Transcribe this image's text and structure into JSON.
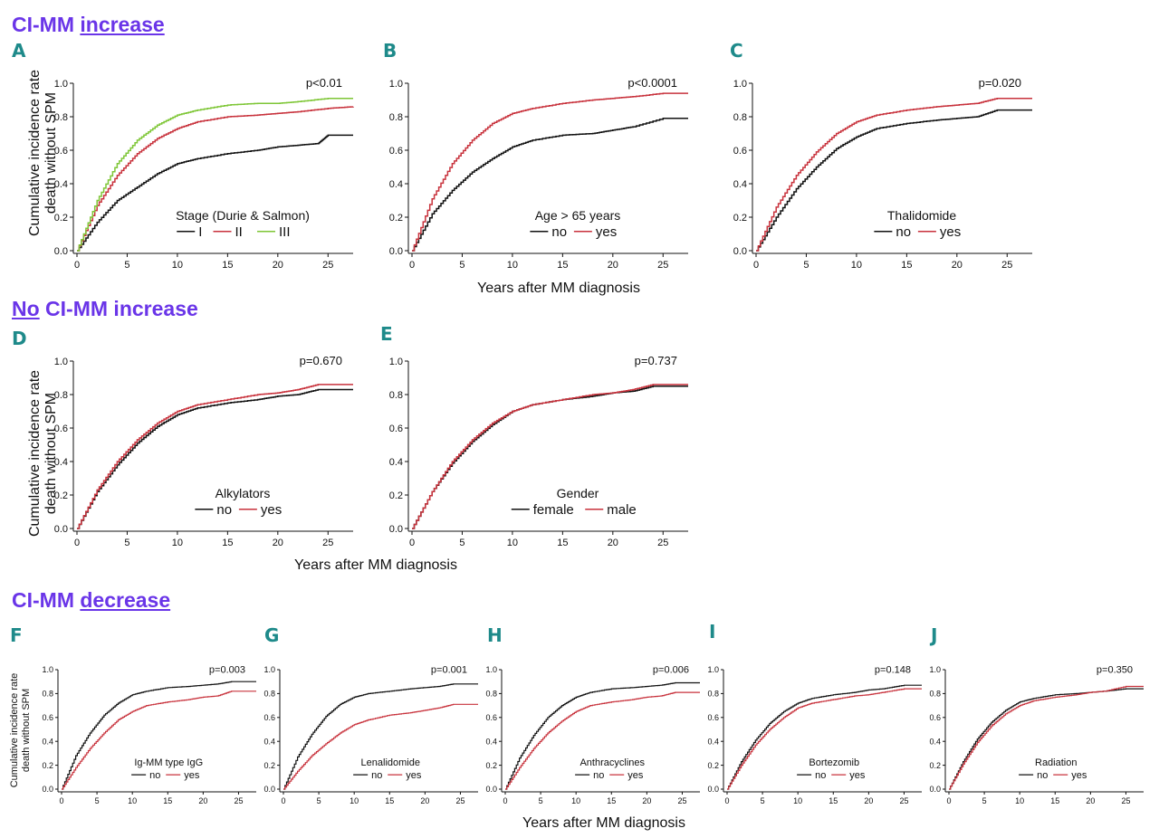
{
  "sections": {
    "increase": {
      "prefix": "CI-MM ",
      "underlined": "increase",
      "suffix": ""
    },
    "no_increase": {
      "prefix": "",
      "underlined": "No",
      "suffix": " CI-MM increase"
    },
    "decrease": {
      "prefix": "CI-MM ",
      "underlined": "decrease",
      "suffix": ""
    }
  },
  "axis_titles": {
    "y_line1": "Cumulative incidence rate",
    "y_line2": "death without SPM",
    "x": "Years after MM diagnosis"
  },
  "colors": {
    "section": "#6a35e8",
    "panel_label": "#1e8a8a",
    "black": "#111111",
    "red": "#c8323c",
    "green": "#7ec636"
  },
  "chart_data": [
    {
      "id": "A",
      "type": "line",
      "pvalue": "p<0.01",
      "legend_title": "Stage (Durie & Salmon)",
      "xlim": [
        0,
        27.5
      ],
      "ylim": [
        0,
        1.0
      ],
      "xticks": [
        0,
        5,
        10,
        15,
        20,
        25
      ],
      "yticks": [
        "0.0",
        "0.2",
        "0.4",
        "0.6",
        "0.8",
        "1.0"
      ],
      "series": [
        {
          "name": "I",
          "color": "#111111",
          "x": [
            0,
            2,
            4,
            6,
            8,
            10,
            12,
            15,
            18,
            20,
            22,
            24,
            25,
            27.5
          ],
          "values": [
            0,
            0.17,
            0.3,
            0.38,
            0.46,
            0.52,
            0.55,
            0.58,
            0.6,
            0.62,
            0.63,
            0.64,
            0.69,
            0.69
          ]
        },
        {
          "name": "II",
          "color": "#c8323c",
          "x": [
            0,
            2,
            4,
            6,
            8,
            10,
            12,
            15,
            18,
            20,
            22,
            25,
            27.5
          ],
          "values": [
            0,
            0.27,
            0.45,
            0.58,
            0.67,
            0.73,
            0.77,
            0.8,
            0.81,
            0.82,
            0.83,
            0.85,
            0.86
          ]
        },
        {
          "name": "III",
          "color": "#7ec636",
          "x": [
            0,
            2,
            4,
            6,
            8,
            10,
            12,
            15,
            18,
            20,
            22,
            25,
            27.5
          ],
          "values": [
            0,
            0.3,
            0.52,
            0.66,
            0.75,
            0.81,
            0.84,
            0.87,
            0.88,
            0.88,
            0.89,
            0.91,
            0.91
          ]
        }
      ]
    },
    {
      "id": "B",
      "type": "line",
      "pvalue": "p<0.0001",
      "legend_title": "Age > 65 years",
      "xlim": [
        0,
        27.5
      ],
      "ylim": [
        0,
        1.0
      ],
      "xticks": [
        0,
        5,
        10,
        15,
        20,
        25
      ],
      "yticks": [
        "0.0",
        "0.2",
        "0.4",
        "0.6",
        "0.8",
        "1.0"
      ],
      "series": [
        {
          "name": "no",
          "color": "#111111",
          "x": [
            0,
            2,
            4,
            6,
            8,
            10,
            12,
            15,
            18,
            20,
            22,
            25,
            27.5
          ],
          "values": [
            0,
            0.22,
            0.36,
            0.47,
            0.55,
            0.62,
            0.66,
            0.69,
            0.7,
            0.72,
            0.74,
            0.79,
            0.79
          ]
        },
        {
          "name": "yes",
          "color": "#c8323c",
          "x": [
            0,
            2,
            4,
            6,
            8,
            10,
            12,
            15,
            18,
            20,
            22,
            25,
            27.5
          ],
          "values": [
            0,
            0.31,
            0.52,
            0.66,
            0.76,
            0.82,
            0.85,
            0.88,
            0.9,
            0.91,
            0.92,
            0.94,
            0.94
          ]
        }
      ]
    },
    {
      "id": "C",
      "type": "line",
      "pvalue": "p=0.020",
      "legend_title": "Thalidomide",
      "xlim": [
        0,
        27.5
      ],
      "ylim": [
        0,
        1.0
      ],
      "xticks": [
        0,
        5,
        10,
        15,
        20,
        25
      ],
      "yticks": [
        "0.0",
        "0.2",
        "0.4",
        "0.6",
        "0.8",
        "1.0"
      ],
      "series": [
        {
          "name": "no",
          "color": "#111111",
          "x": [
            0,
            2,
            4,
            6,
            8,
            10,
            12,
            15,
            18,
            20,
            22,
            24,
            27.5
          ],
          "values": [
            0,
            0.2,
            0.37,
            0.5,
            0.61,
            0.68,
            0.73,
            0.76,
            0.78,
            0.79,
            0.8,
            0.84,
            0.84
          ]
        },
        {
          "name": "yes",
          "color": "#c8323c",
          "x": [
            0,
            2,
            4,
            6,
            8,
            10,
            12,
            15,
            18,
            20,
            22,
            24,
            27.5
          ],
          "values": [
            0,
            0.26,
            0.45,
            0.59,
            0.7,
            0.77,
            0.81,
            0.84,
            0.86,
            0.87,
            0.88,
            0.91,
            0.91
          ]
        }
      ]
    },
    {
      "id": "D",
      "type": "line",
      "pvalue": "p=0.670",
      "legend_title": "Alkylators",
      "xlim": [
        0,
        27.5
      ],
      "ylim": [
        0,
        1.0
      ],
      "xticks": [
        0,
        5,
        10,
        15,
        20,
        25
      ],
      "yticks": [
        "0.0",
        "0.2",
        "0.4",
        "0.6",
        "0.8",
        "1.0"
      ],
      "series": [
        {
          "name": "no",
          "color": "#111111",
          "x": [
            0,
            2,
            4,
            6,
            8,
            10,
            12,
            15,
            18,
            20,
            22,
            24,
            27.5
          ],
          "values": [
            0,
            0.22,
            0.38,
            0.51,
            0.61,
            0.68,
            0.72,
            0.75,
            0.77,
            0.79,
            0.8,
            0.83,
            0.83
          ]
        },
        {
          "name": "yes",
          "color": "#c8323c",
          "x": [
            0,
            2,
            4,
            6,
            8,
            10,
            12,
            15,
            18,
            20,
            22,
            24,
            27.5
          ],
          "values": [
            0,
            0.23,
            0.4,
            0.53,
            0.63,
            0.7,
            0.74,
            0.77,
            0.8,
            0.81,
            0.83,
            0.86,
            0.86
          ]
        }
      ]
    },
    {
      "id": "E",
      "type": "line",
      "pvalue": "p=0.737",
      "legend_title": "Gender",
      "xlim": [
        0,
        27.5
      ],
      "ylim": [
        0,
        1.0
      ],
      "xticks": [
        0,
        5,
        10,
        15,
        20,
        25
      ],
      "yticks": [
        "0.0",
        "0.2",
        "0.4",
        "0.6",
        "0.8",
        "1.0"
      ],
      "series": [
        {
          "name": "female",
          "color": "#111111",
          "x": [
            0,
            2,
            4,
            6,
            8,
            10,
            12,
            15,
            18,
            20,
            22,
            24,
            27.5
          ],
          "values": [
            0,
            0.22,
            0.39,
            0.52,
            0.62,
            0.7,
            0.74,
            0.77,
            0.79,
            0.81,
            0.82,
            0.85,
            0.85
          ]
        },
        {
          "name": "male",
          "color": "#c8323c",
          "x": [
            0,
            2,
            4,
            6,
            8,
            10,
            12,
            15,
            18,
            20,
            22,
            24,
            27.5
          ],
          "values": [
            0,
            0.22,
            0.4,
            0.53,
            0.63,
            0.7,
            0.74,
            0.77,
            0.8,
            0.81,
            0.83,
            0.86,
            0.86
          ]
        }
      ]
    },
    {
      "id": "F",
      "type": "line",
      "pvalue": "p=0.003",
      "legend_title": "Ig-MM type IgG",
      "xlim": [
        0,
        27.5
      ],
      "ylim": [
        0,
        1.0
      ],
      "xticks": [
        0,
        5,
        10,
        15,
        20,
        25
      ],
      "yticks": [
        "0.0",
        "0.2",
        "0.4",
        "0.6",
        "0.8",
        "1.0"
      ],
      "series": [
        {
          "name": "no",
          "color": "#111111",
          "x": [
            0,
            2,
            4,
            6,
            8,
            10,
            12,
            15,
            18,
            20,
            22,
            24,
            27.5
          ],
          "values": [
            0,
            0.28,
            0.47,
            0.62,
            0.72,
            0.79,
            0.82,
            0.85,
            0.86,
            0.87,
            0.88,
            0.9,
            0.9
          ]
        },
        {
          "name": "yes",
          "color": "#c8323c",
          "x": [
            0,
            2,
            4,
            6,
            8,
            10,
            12,
            15,
            18,
            20,
            22,
            24,
            27.5
          ],
          "values": [
            0,
            0.18,
            0.34,
            0.47,
            0.58,
            0.65,
            0.7,
            0.73,
            0.75,
            0.77,
            0.78,
            0.82,
            0.82
          ]
        }
      ]
    },
    {
      "id": "G",
      "type": "line",
      "pvalue": "p=0.001",
      "legend_title": "Lenalidomide",
      "xlim": [
        0,
        27.5
      ],
      "ylim": [
        0,
        1.0
      ],
      "xticks": [
        0,
        5,
        10,
        15,
        20,
        25
      ],
      "yticks": [
        "0.0",
        "0.2",
        "0.4",
        "0.6",
        "0.8",
        "1.0"
      ],
      "series": [
        {
          "name": "no",
          "color": "#111111",
          "x": [
            0,
            2,
            4,
            6,
            8,
            10,
            12,
            15,
            18,
            20,
            22,
            24,
            27.5
          ],
          "values": [
            0,
            0.27,
            0.46,
            0.61,
            0.71,
            0.77,
            0.8,
            0.82,
            0.84,
            0.85,
            0.86,
            0.88,
            0.88
          ]
        },
        {
          "name": "yes",
          "color": "#c8323c",
          "x": [
            0,
            2,
            4,
            6,
            8,
            10,
            12,
            15,
            18,
            20,
            22,
            24,
            27.5
          ],
          "values": [
            0,
            0.15,
            0.28,
            0.38,
            0.47,
            0.54,
            0.58,
            0.62,
            0.64,
            0.66,
            0.68,
            0.71,
            0.71
          ]
        }
      ]
    },
    {
      "id": "H",
      "type": "line",
      "pvalue": "p=0.006",
      "legend_title": "Anthracyclines",
      "xlim": [
        0,
        27.5
      ],
      "ylim": [
        0,
        1.0
      ],
      "xticks": [
        0,
        5,
        10,
        15,
        20,
        25
      ],
      "yticks": [
        "0.0",
        "0.2",
        "0.4",
        "0.6",
        "0.8",
        "1.0"
      ],
      "series": [
        {
          "name": "no",
          "color": "#111111",
          "x": [
            0,
            2,
            4,
            6,
            8,
            10,
            12,
            15,
            18,
            20,
            22,
            24,
            27.5
          ],
          "values": [
            0,
            0.26,
            0.45,
            0.6,
            0.7,
            0.77,
            0.81,
            0.84,
            0.85,
            0.86,
            0.87,
            0.89,
            0.89
          ]
        },
        {
          "name": "yes",
          "color": "#c8323c",
          "x": [
            0,
            2,
            4,
            6,
            8,
            10,
            12,
            15,
            18,
            20,
            22,
            24,
            27.5
          ],
          "values": [
            0,
            0.18,
            0.34,
            0.47,
            0.57,
            0.65,
            0.7,
            0.73,
            0.75,
            0.77,
            0.78,
            0.81,
            0.81
          ]
        }
      ]
    },
    {
      "id": "I",
      "type": "line",
      "pvalue": "p=0.148",
      "legend_title": "Bortezomib",
      "xlim": [
        0,
        27.5
      ],
      "ylim": [
        0,
        1.0
      ],
      "xticks": [
        0,
        5,
        10,
        15,
        20,
        25
      ],
      "yticks": [
        "0.0",
        "0.2",
        "0.4",
        "0.6",
        "0.8",
        "1.0"
      ],
      "series": [
        {
          "name": "no",
          "color": "#111111",
          "x": [
            0,
            2,
            4,
            6,
            8,
            10,
            12,
            15,
            18,
            20,
            22,
            25,
            27.5
          ],
          "values": [
            0,
            0.23,
            0.41,
            0.55,
            0.65,
            0.72,
            0.76,
            0.79,
            0.81,
            0.83,
            0.84,
            0.87,
            0.87
          ]
        },
        {
          "name": "yes",
          "color": "#c8323c",
          "x": [
            0,
            2,
            4,
            6,
            8,
            10,
            12,
            15,
            18,
            20,
            22,
            25,
            27.5
          ],
          "values": [
            0,
            0.2,
            0.37,
            0.5,
            0.6,
            0.68,
            0.72,
            0.75,
            0.78,
            0.79,
            0.81,
            0.84,
            0.84
          ]
        }
      ]
    },
    {
      "id": "J",
      "type": "line",
      "pvalue": "p=0.350",
      "legend_title": "Radiation",
      "xlim": [
        0,
        27.5
      ],
      "ylim": [
        0,
        1.0
      ],
      "xticks": [
        0,
        5,
        10,
        15,
        20,
        25
      ],
      "yticks": [
        "0.0",
        "0.2",
        "0.4",
        "0.6",
        "0.8",
        "1.0"
      ],
      "series": [
        {
          "name": "no",
          "color": "#111111",
          "x": [
            0,
            2,
            4,
            6,
            8,
            10,
            12,
            15,
            18,
            20,
            22,
            25,
            27.5
          ],
          "values": [
            0,
            0.23,
            0.42,
            0.56,
            0.66,
            0.73,
            0.76,
            0.79,
            0.8,
            0.81,
            0.82,
            0.84,
            0.84
          ]
        },
        {
          "name": "yes",
          "color": "#c8323c",
          "x": [
            0,
            2,
            4,
            6,
            8,
            10,
            12,
            15,
            18,
            20,
            22,
            25,
            27.5
          ],
          "values": [
            0,
            0.21,
            0.39,
            0.53,
            0.63,
            0.7,
            0.74,
            0.77,
            0.79,
            0.81,
            0.82,
            0.86,
            0.86
          ]
        }
      ]
    }
  ]
}
